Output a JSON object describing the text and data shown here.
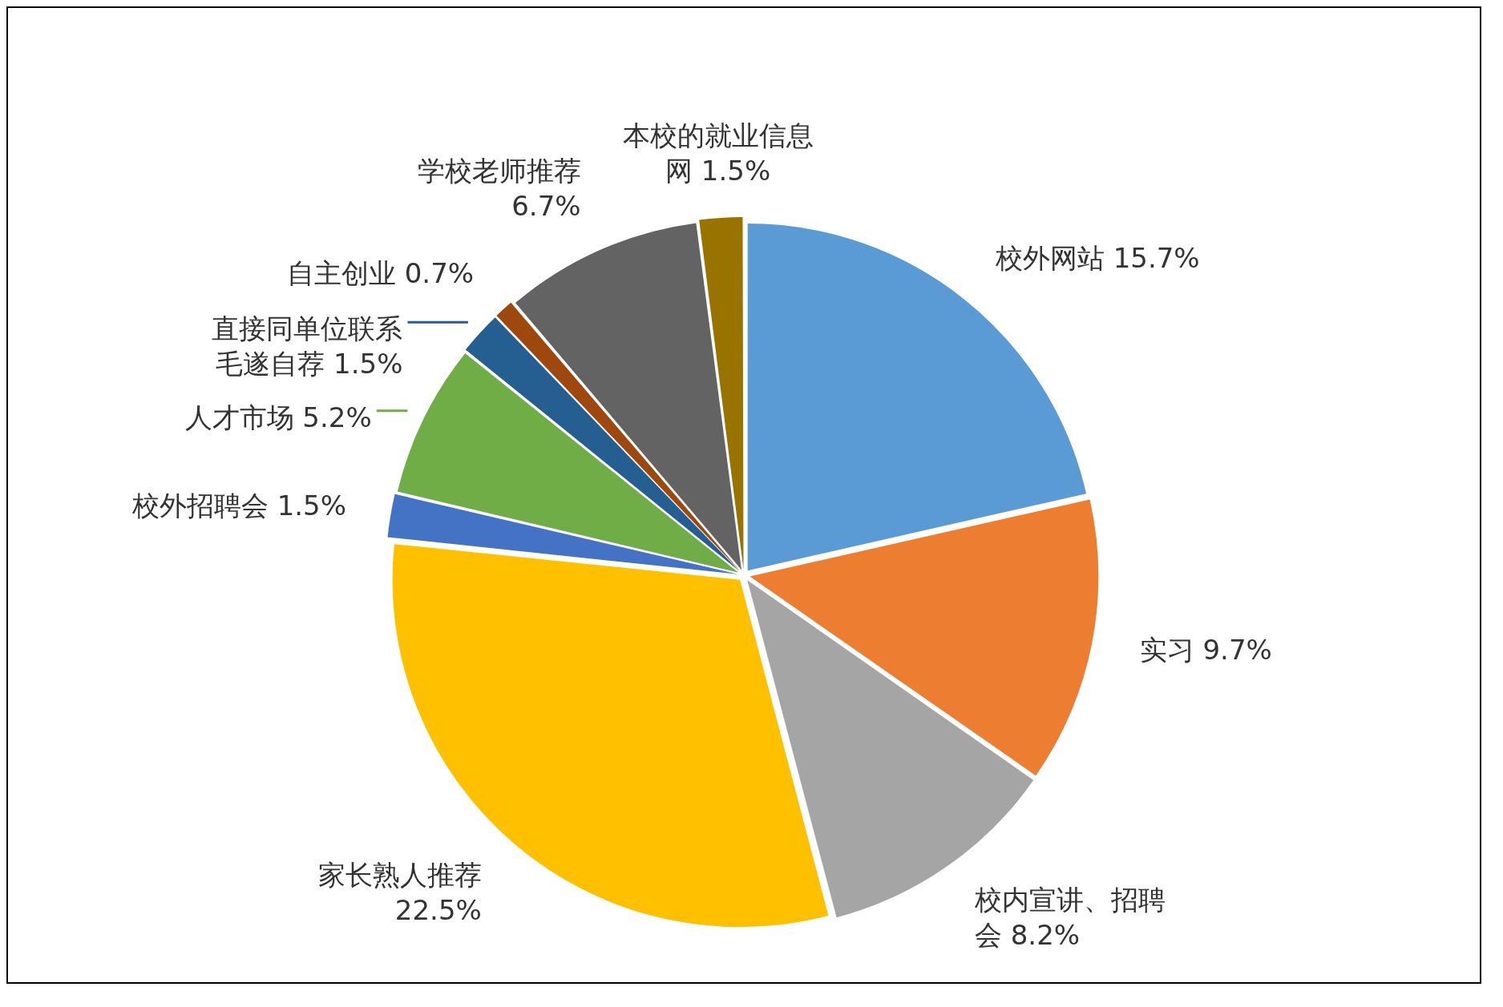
{
  "chart_data": {
    "type": "pie",
    "categories": [
      "校外网站",
      "实习",
      "校内宣讲、招聘会",
      "家长熟人推荐",
      "校外招聘会",
      "人才市场",
      "直接同单位联系毛遂自荐",
      "自主创业",
      "学校老师推荐",
      "本校的就业信息网"
    ],
    "values": [
      15.7,
      9.7,
      8.2,
      22.5,
      1.5,
      5.2,
      1.5,
      0.7,
      6.7,
      1.5
    ],
    "value_labels": [
      "15.7%",
      "9.7%",
      "8.2%",
      "22.5%",
      "1.5%",
      "5.2%",
      "1.5%",
      "0.7%",
      "6.7%",
      "1.5%"
    ],
    "colors": [
      "#5b9bd5",
      "#ed7d31",
      "#a5a5a5",
      "#ffc000",
      "#4472c4",
      "#70ad47",
      "#255e91",
      "#9e480e",
      "#636363",
      "#997300"
    ],
    "legend": false
  }
}
